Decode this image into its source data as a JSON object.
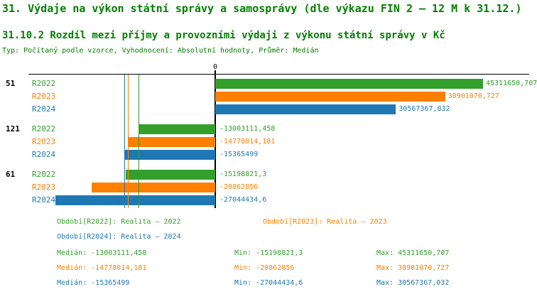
{
  "page": {
    "title": "31. Výdaje na výkon státní správy a samosprávy (dle výkazu FIN 2 – 12 M k 31.12.)",
    "subtitle": "31.10.2 Rozdíl mezi příjmy a provozními výdaji z výkonu státní správy v Kč",
    "meta": "Typ: Počítaný podle vzorce, Vyhodnocení: Absolutní hodnoty, Průměr: Medián"
  },
  "colors": {
    "heading": "#008000",
    "green": "#33a02c",
    "orange": "#ff7f00",
    "blue": "#1f78b4",
    "axis": "#000000"
  },
  "chart_data": {
    "type": "bar",
    "orientation": "horizontal",
    "zero_label": "0",
    "x_range": [
      -27044434.6,
      45311650.707
    ],
    "categories": [
      "51",
      "121",
      "61"
    ],
    "series_names": [
      "R2022",
      "R2023",
      "R2024"
    ],
    "groups": [
      {
        "label": "51",
        "bars": [
          {
            "series": "R2022",
            "value": 45311650.707,
            "display": "45311650,707",
            "color_key": "green"
          },
          {
            "series": "R2023",
            "value": 38901070.727,
            "display": "38901070,727",
            "color_key": "orange"
          },
          {
            "series": "R2024",
            "value": 30567367.032,
            "display": "30567367,032",
            "color_key": "blue"
          }
        ]
      },
      {
        "label": "121",
        "bars": [
          {
            "series": "R2022",
            "value": -13003111.458,
            "display": "-13003111,458",
            "color_key": "green"
          },
          {
            "series": "R2023",
            "value": -14778014.181,
            "display": "-14778014,181",
            "color_key": "orange"
          },
          {
            "series": "R2024",
            "value": -15365499,
            "display": "-15365499",
            "color_key": "blue"
          }
        ]
      },
      {
        "label": "61",
        "bars": [
          {
            "series": "R2022",
            "value": -15198821.3,
            "display": "-15198821,3",
            "color_key": "green"
          },
          {
            "series": "R2023",
            "value": -20862856,
            "display": "-20862856",
            "color_key": "orange"
          },
          {
            "series": "R2024",
            "value": -27044434.6,
            "display": "-27044434,6",
            "color_key": "blue"
          }
        ]
      }
    ],
    "median_lines": [
      {
        "value": -13003111.458,
        "color_key": "green"
      },
      {
        "value": -14778014.181,
        "color_key": "orange"
      },
      {
        "value": -15365499,
        "color_key": "blue"
      }
    ],
    "legend_position": "bottom",
    "grid": false
  },
  "legend": [
    {
      "label": "Období[R2022]: Realita – 2022",
      "color_key": "green"
    },
    {
      "label": "Období[R2023]: Realita – 2023",
      "color_key": "orange"
    },
    {
      "label": "Období[R2024]: Realita – 2024",
      "color_key": "blue"
    }
  ],
  "stats": {
    "median_label": "Medián:",
    "min_label": "Min:",
    "max_label": "Max:",
    "rows": [
      {
        "median": "-13003111,458",
        "min": "-15198821,3",
        "max": "45311650,707",
        "color_key": "green"
      },
      {
        "median": "-14778014,181",
        "min": "-20862856",
        "max": "38901070,727",
        "color_key": "orange"
      },
      {
        "median": "-15365499",
        "min": "-27044434,6",
        "max": "30567367,032",
        "color_key": "blue"
      }
    ]
  }
}
